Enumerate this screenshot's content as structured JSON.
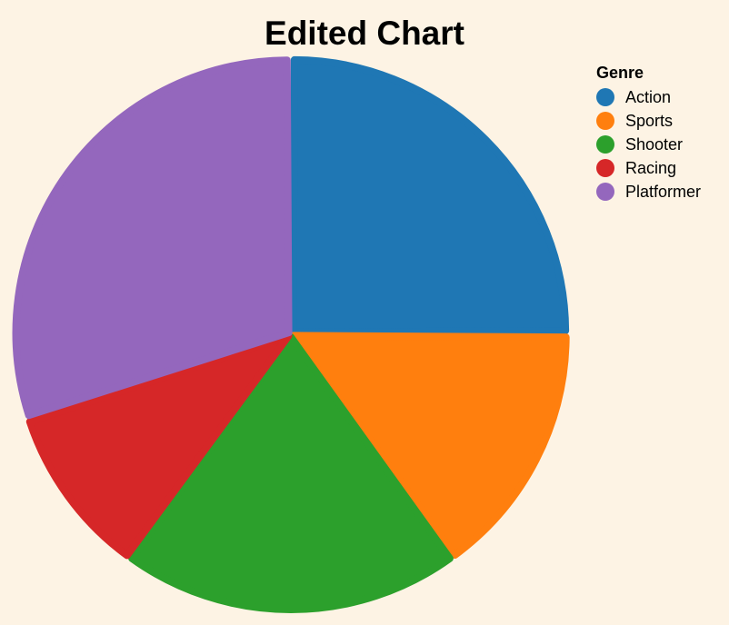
{
  "chart_data": {
    "type": "pie",
    "title": "Edited Chart",
    "legend_title": "Genre",
    "legend_position": "top-right",
    "categories": [
      "Action",
      "Sports",
      "Shooter",
      "Racing",
      "Platformer"
    ],
    "values": [
      25,
      15,
      20,
      10,
      30
    ],
    "colors": [
      "#1f77b4",
      "#ff7f0e",
      "#2ca02c",
      "#d62728",
      "#9467bd"
    ],
    "slice_order": "clockwise-from-top"
  }
}
